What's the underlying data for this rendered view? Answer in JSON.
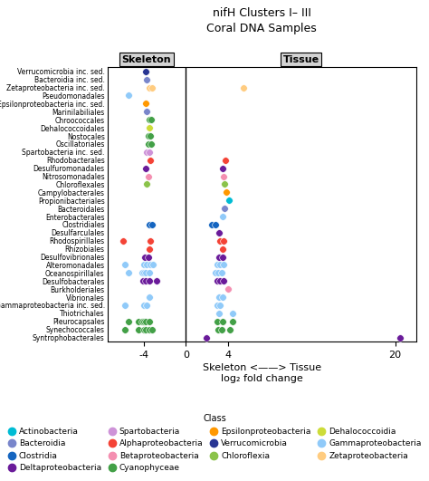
{
  "chart_data": {
    "type": "scatter",
    "title": "nifH Clusters I– III",
    "subtitle": "Coral DNA Samples",
    "xlabel": "log₂ fold change",
    "annotations": [
      "Skeleton <——> Tissue"
    ],
    "panel_labels": [
      "Skeleton",
      "Tissue"
    ],
    "divider": 0,
    "legend": "lower center",
    "legend_title": "Class",
    "xlim": [
      -7.5,
      22
    ],
    "xticks": [
      -4,
      0,
      4,
      20
    ],
    "categories": [
      "Verrucomicrobia inc. sed.",
      "Bacteroidia inc. sed.",
      "Zetaproteobacteria inc. sed.",
      "Pseudomonadales",
      "Epsilonproteobacteria inc. sed.",
      "Marinilabiliales",
      "Chroococcales",
      "Dehalococcoidales",
      "Nostocales",
      "Oscillatoriales",
      "Spartobacteria inc. sed.",
      "Rhodobacterales",
      "Desulfuromonadales",
      "Nitrosomonadales",
      "Chloroflexales",
      "Campylobacterales",
      "Propionibacteriales",
      "Bacteroidales",
      "Enterobacterales",
      "Clostridiales",
      "Desulfarculales",
      "Rhodospirillales",
      "Rhizobiales",
      "Desulfovibrionales",
      "Alteromonadales",
      "Oceanospirillales",
      "Desulfobacterales",
      "Burkholderiales",
      "Vibrionales",
      "Gammaproteobacteria inc. sed.",
      "Thiotrichales",
      "Pleurocapsales",
      "Synechococcales",
      "Syntrophobacterales"
    ],
    "series": [
      {
        "name": "Actinobacteria",
        "color": "#00BCD4",
        "x": [
          4.1
        ],
        "y": [
          "Propionibacteriales"
        ]
      },
      {
        "name": "Bacteroidia",
        "color": "#7986CB",
        "x": [
          -3.7,
          -3.7,
          3.7
        ],
        "y": [
          "Bacteroidia inc. sed.",
          "Marinilabiliales",
          "Bacteroidales"
        ]
      },
      {
        "name": "Clostridia",
        "color": "#1565C0",
        "x": [
          -3.5,
          -3.2,
          2.5,
          2.8
        ],
        "y": [
          "Clostridiales",
          "Clostridiales",
          "Clostridiales",
          "Clostridiales"
        ]
      },
      {
        "name": "Deltaproteobacteria",
        "color": "#6A1B9A",
        "x": [
          -3.8,
          3.5,
          3.2,
          -3.9,
          -3.6,
          3.2,
          3.5,
          -4.1,
          -3.8,
          -3.5,
          -2.8,
          3.0,
          3.3,
          3.6,
          2.0,
          20.5
        ],
        "y": [
          "Desulfuromonadales",
          "Desulfuromonadales",
          "Desulfarculales",
          "Desulfovibrionales",
          "Desulfovibrionales",
          "Desulfovibrionales",
          "Desulfovibrionales",
          "Desulfobacterales",
          "Desulfobacterales",
          "Desulfobacterales",
          "Desulfobacterales",
          "Desulfobacterales",
          "Desulfobacterales",
          "Desulfobacterales",
          "Syntrophobacterales",
          "Syntrophobacterales"
        ]
      },
      {
        "name": "Spartobacteria",
        "color": "#CE93D8",
        "x": [
          -3.7,
          -3.5
        ],
        "y": [
          "Spartobacteria inc. sed.",
          "Spartobacteria inc. sed."
        ]
      },
      {
        "name": "Alphaproteobacteria",
        "color": "#F44336",
        "x": [
          -3.4,
          3.8,
          -6.0,
          -3.4,
          3.3,
          3.6,
          -3.5,
          3.5
        ],
        "y": [
          "Rhodobacterales",
          "Rhodobacterales",
          "Rhodospirillales",
          "Rhodospirillales",
          "Rhodospirillales",
          "Rhodospirillales",
          "Rhizobiales",
          "Rhizobiales"
        ]
      },
      {
        "name": "Betaproteobacteria",
        "color": "#F48FB1",
        "x": [
          -3.6,
          3.6,
          4.0
        ],
        "y": [
          "Nitrosomonadales",
          "Nitrosomonadales",
          "Burkholderiales"
        ]
      },
      {
        "name": "Cyanophyceae",
        "color": "#43A047",
        "x": [
          -3.5,
          -3.3,
          -3.6,
          -3.4,
          -3.55,
          -3.3,
          -5.5,
          -4.5,
          -4.2,
          -4.0,
          -3.8,
          -3.5,
          3.0,
          3.5,
          4.5,
          -5.8,
          -4.5,
          -4.0,
          -3.8,
          -3.5,
          -3.2,
          3.1,
          3.4,
          4.2
        ],
        "y": [
          "Chroococcales",
          "Chroococcales",
          "Nostocales",
          "Nostocales",
          "Oscillatoriales",
          "Oscillatoriales",
          "Pleurocapsales",
          "Pleurocapsales",
          "Pleurocapsales",
          "Pleurocapsales",
          "Pleurocapsales",
          "Pleurocapsales",
          "Pleurocapsales",
          "Pleurocapsales",
          "Pleurocapsales",
          "Synechococcales",
          "Synechococcales",
          "Synechococcales",
          "Synechococcales",
          "Synechococcales",
          "Synechococcales",
          "Synechococcales",
          "Synechococcales",
          "Synechococcales"
        ]
      },
      {
        "name": "Epsilonproteobacteria",
        "color": "#FF9800",
        "x": [
          -3.8,
          3.9
        ],
        "y": [
          "Epsilonproteobacteria inc. sed.",
          "Campylobacterales"
        ]
      },
      {
        "name": "Verrucomicrobia",
        "color": "#283593",
        "x": [
          -3.8
        ],
        "y": [
          "Verrucomicrobia inc. sed."
        ]
      },
      {
        "name": "Chloroflexia",
        "color": "#8BC34A",
        "x": [
          -3.7,
          3.7
        ],
        "y": [
          "Chloroflexales",
          "Chloroflexales"
        ]
      },
      {
        "name": "Dehalococcoidia",
        "color": "#CDDC39",
        "x": [
          -3.5
        ],
        "y": [
          "Dehalococcoidales"
        ]
      },
      {
        "name": "Gammaproteobacteria",
        "color": "#90CAF9",
        "x": [
          -5.5,
          3.5,
          -5.8,
          -4.0,
          -3.7,
          -3.4,
          -3.1,
          3.0,
          3.3,
          3.6,
          -5.5,
          -4.2,
          -4.0,
          -3.8,
          -3.5,
          2.8,
          3.1,
          3.4,
          -3.5,
          3.2,
          3.5,
          -5.8,
          -4.0,
          -3.7,
          3.0,
          3.3,
          3.2,
          4.5
        ],
        "y": [
          "Pseudomonadales",
          "Enterobacterales",
          "Alteromonadales",
          "Alteromonadales",
          "Alteromonadales",
          "Alteromonadales",
          "Alteromonadales",
          "Alteromonadales",
          "Alteromonadales",
          "Alteromonadales",
          "Oceanospirillales",
          "Oceanospirillales",
          "Oceanospirillales",
          "Oceanospirillales",
          "Oceanospirillales",
          "Oceanospirillales",
          "Oceanospirillales",
          "Oceanospirillales",
          "Vibrionales",
          "Vibrionales",
          "Vibrionales",
          "Gammaproteobacteria inc. sed.",
          "Gammaproteobacteria inc. sed.",
          "Gammaproteobacteria inc. sed.",
          "Gammaproteobacteria inc. sed.",
          "Gammaproteobacteria inc. sed.",
          "Thiotrichales",
          "Thiotrichales"
        ]
      },
      {
        "name": "Zetaproteobacteria",
        "color": "#FFCC80",
        "x": [
          -3.5,
          -3.2,
          5.5
        ],
        "y": [
          "Zetaproteobacteria inc. sed.",
          "Zetaproteobacteria inc. sed.",
          "Zetaproteobacteria inc. sed."
        ]
      }
    ]
  }
}
